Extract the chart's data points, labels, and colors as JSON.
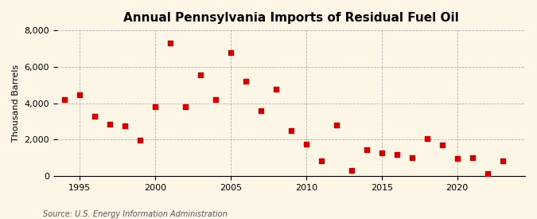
{
  "title": "Annual Pennsylvania Imports of Residual Fuel Oil",
  "ylabel": "Thousand Barrels",
  "source": "Source: U.S. Energy Information Administration",
  "background_color": "#fdf5e6",
  "plot_bg_color": "#fdf5e6",
  "marker_color": "#cc0000",
  "years": [
    1994,
    1995,
    1996,
    1997,
    1998,
    1999,
    2000,
    2001,
    2002,
    2003,
    2004,
    2005,
    2006,
    2007,
    2008,
    2009,
    2010,
    2011,
    2012,
    2013,
    2014,
    2015,
    2016,
    2017,
    2018,
    2019,
    2020,
    2021,
    2022,
    2023
  ],
  "values": [
    4200,
    4450,
    3300,
    2850,
    2750,
    1950,
    3800,
    7300,
    3800,
    5550,
    4200,
    6800,
    5200,
    3600,
    4750,
    2500,
    1750,
    850,
    2800,
    300,
    1450,
    1250,
    1200,
    1000,
    2050,
    1700,
    950,
    1000,
    150,
    850
  ],
  "ylim": [
    0,
    8000
  ],
  "yticks": [
    0,
    2000,
    4000,
    6000,
    8000
  ],
  "xlim": [
    1993.5,
    2024.5
  ],
  "xticks": [
    1995,
    2000,
    2005,
    2010,
    2015,
    2020
  ]
}
